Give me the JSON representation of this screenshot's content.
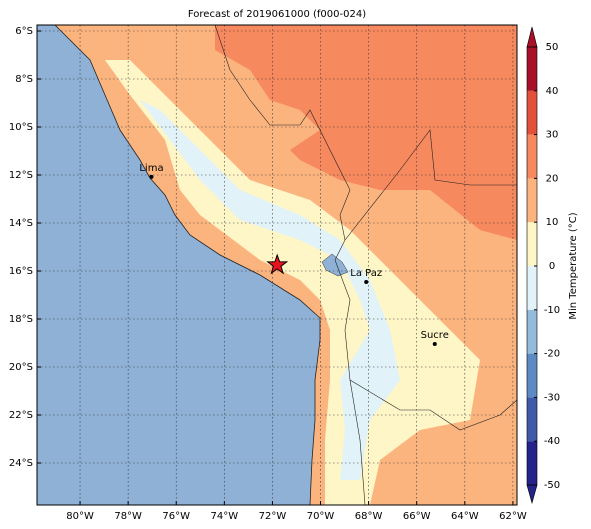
{
  "chart_data": {
    "type": "map",
    "title": "Forecast of 2019061000 (f000-024)",
    "xlim": [
      -81.79,
      -61.83
    ],
    "ylim": [
      -25.75,
      -5.75
    ],
    "xticks": [
      {
        "value": -80,
        "label": "80°W"
      },
      {
        "value": -78,
        "label": "78°W"
      },
      {
        "value": -76,
        "label": "76°W"
      },
      {
        "value": -74,
        "label": "74°W"
      },
      {
        "value": -72,
        "label": "72°W"
      },
      {
        "value": -70,
        "label": "70°W"
      },
      {
        "value": -68,
        "label": "68°W"
      },
      {
        "value": -66,
        "label": "66°W"
      },
      {
        "value": -64,
        "label": "64°W"
      },
      {
        "value": -62,
        "label": "62°W"
      }
    ],
    "yticks": [
      {
        "value": -6,
        "label": "6°S"
      },
      {
        "value": -8,
        "label": "8°S"
      },
      {
        "value": -10,
        "label": "10°S"
      },
      {
        "value": -12,
        "label": "12°S"
      },
      {
        "value": -14,
        "label": "14°S"
      },
      {
        "value": -16,
        "label": "16°S"
      },
      {
        "value": -18,
        "label": "18°S"
      },
      {
        "value": -20,
        "label": "20°S"
      },
      {
        "value": -22,
        "label": "22°S"
      },
      {
        "value": -24,
        "label": "24°S"
      }
    ],
    "grid": true,
    "cities": [
      {
        "name": "Lima",
        "lon": -77.03,
        "lat": -12.08
      },
      {
        "name": "La Paz",
        "lon": -68.1,
        "lat": -16.46
      },
      {
        "name": "Sucre",
        "lon": -65.25,
        "lat": -19.04
      }
    ],
    "marker": {
      "lon": -71.8,
      "lat": -15.75,
      "color": "#e8141c"
    },
    "colorbar": {
      "label": "Min Temperature (°C)",
      "ticks": [
        -50,
        -40,
        -30,
        -20,
        -10,
        0,
        10,
        20,
        30,
        40,
        50
      ],
      "colors": [
        "#23238a",
        "#3f5aa8",
        "#5b8bc2",
        "#93bcdb",
        "#e1f2f8",
        "#fef6c6",
        "#fcb47f",
        "#f6895e",
        "#e4513b",
        "#a8102a"
      ]
    }
  }
}
